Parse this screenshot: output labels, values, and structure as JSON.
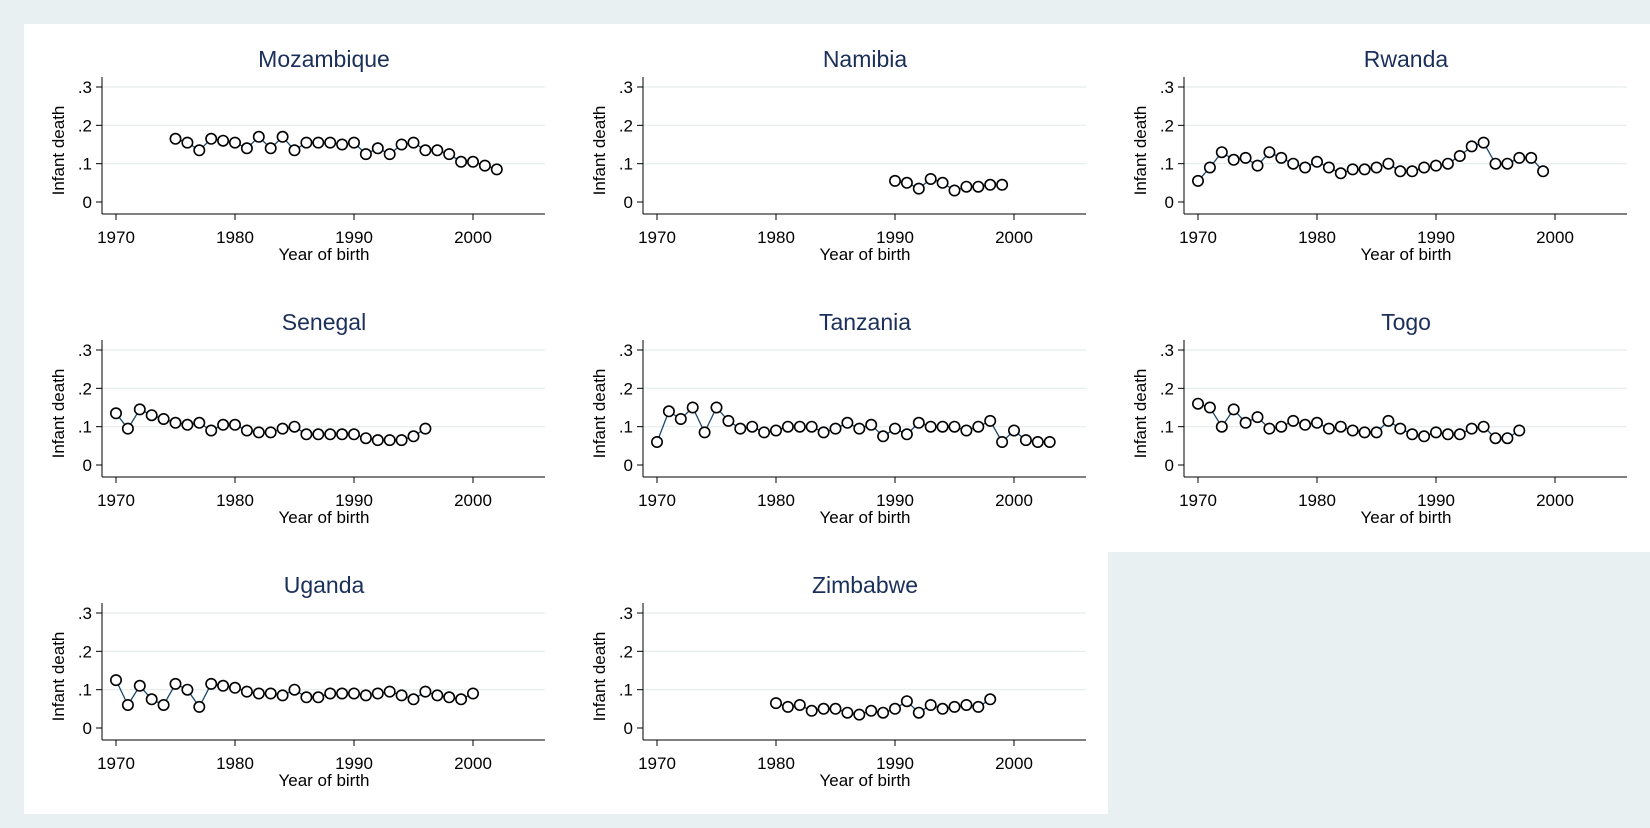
{
  "colors": {
    "outer_background": "#e8f0f2",
    "plot_background": "#ffffff",
    "title": "#1a2f5a",
    "line": "#1a476f",
    "marker_edge": "#000000",
    "marker_fill": "#ffffff",
    "grid": "#e6ecee"
  },
  "chart_data": [
    {
      "type": "line",
      "title": "Mozambique",
      "xlabel": "Year of birth",
      "ylabel": "Infant death",
      "xlim": [
        1970,
        2005
      ],
      "ylim": [
        0,
        0.3
      ],
      "xticks": [
        1970,
        1980,
        1990,
        2000
      ],
      "yticks": [
        0,
        0.1,
        0.2,
        0.3
      ],
      "ytick_labels": [
        "0",
        ".1",
        ".2",
        ".3"
      ],
      "grid": true,
      "marker": "hollow-circle",
      "x": [
        1975,
        1976,
        1977,
        1978,
        1979,
        1980,
        1981,
        1982,
        1983,
        1984,
        1985,
        1986,
        1987,
        1988,
        1989,
        1990,
        1991,
        1992,
        1993,
        1994,
        1995,
        1996,
        1997,
        1998,
        1999,
        2000,
        2001,
        2002
      ],
      "y": [
        0.165,
        0.155,
        0.135,
        0.165,
        0.16,
        0.155,
        0.14,
        0.17,
        0.14,
        0.17,
        0.135,
        0.155,
        0.155,
        0.155,
        0.15,
        0.155,
        0.125,
        0.14,
        0.125,
        0.15,
        0.155,
        0.135,
        0.135,
        0.125,
        0.105,
        0.105,
        0.095,
        0.085
      ]
    },
    {
      "type": "line",
      "title": "Namibia",
      "xlabel": "Year of birth",
      "ylabel": "Infant death",
      "xlim": [
        1970,
        2005
      ],
      "ylim": [
        0,
        0.3
      ],
      "xticks": [
        1970,
        1980,
        1990,
        2000
      ],
      "yticks": [
        0,
        0.1,
        0.2,
        0.3
      ],
      "ytick_labels": [
        "0",
        ".1",
        ".2",
        ".3"
      ],
      "grid": true,
      "marker": "hollow-circle",
      "x": [
        1990,
        1991,
        1992,
        1993,
        1994,
        1995,
        1996,
        1997,
        1998,
        1999
      ],
      "y": [
        0.055,
        0.05,
        0.035,
        0.06,
        0.05,
        0.03,
        0.04,
        0.04,
        0.045,
        0.045
      ]
    },
    {
      "type": "line",
      "title": "Rwanda",
      "xlabel": "Year of birth",
      "ylabel": "Infant death",
      "xlim": [
        1970,
        2005
      ],
      "ylim": [
        0,
        0.3
      ],
      "xticks": [
        1970,
        1980,
        1990,
        2000
      ],
      "yticks": [
        0,
        0.1,
        0.2,
        0.3
      ],
      "ytick_labels": [
        "0",
        ".1",
        ".2",
        ".3"
      ],
      "grid": true,
      "marker": "hollow-circle",
      "x": [
        1970,
        1971,
        1972,
        1973,
        1974,
        1975,
        1976,
        1977,
        1978,
        1979,
        1980,
        1981,
        1982,
        1983,
        1984,
        1985,
        1986,
        1987,
        1988,
        1989,
        1990,
        1991,
        1992,
        1993,
        1994,
        1995,
        1996,
        1997,
        1998,
        1999
      ],
      "y": [
        0.055,
        0.09,
        0.13,
        0.11,
        0.115,
        0.095,
        0.13,
        0.115,
        0.1,
        0.09,
        0.105,
        0.09,
        0.075,
        0.085,
        0.085,
        0.09,
        0.1,
        0.08,
        0.08,
        0.09,
        0.095,
        0.1,
        0.12,
        0.145,
        0.155,
        0.1,
        0.1,
        0.115,
        0.115,
        0.08
      ]
    },
    {
      "type": "line",
      "title": "Senegal",
      "xlabel": "Year of birth",
      "ylabel": "Infant death",
      "xlim": [
        1970,
        2005
      ],
      "ylim": [
        0,
        0.3
      ],
      "xticks": [
        1970,
        1980,
        1990,
        2000
      ],
      "yticks": [
        0,
        0.1,
        0.2,
        0.3
      ],
      "ytick_labels": [
        "0",
        ".1",
        ".2",
        ".3"
      ],
      "grid": true,
      "marker": "hollow-circle",
      "x": [
        1970,
        1971,
        1972,
        1973,
        1974,
        1975,
        1976,
        1977,
        1978,
        1979,
        1980,
        1981,
        1982,
        1983,
        1984,
        1985,
        1986,
        1987,
        1988,
        1989,
        1990,
        1991,
        1992,
        1993,
        1994,
        1995,
        1996
      ],
      "y": [
        0.135,
        0.095,
        0.145,
        0.13,
        0.12,
        0.11,
        0.105,
        0.11,
        0.09,
        0.105,
        0.105,
        0.09,
        0.085,
        0.085,
        0.095,
        0.1,
        0.08,
        0.08,
        0.08,
        0.08,
        0.08,
        0.07,
        0.065,
        0.065,
        0.065,
        0.075,
        0.095
      ]
    },
    {
      "type": "line",
      "title": "Tanzania",
      "xlabel": "Year of birth",
      "ylabel": "Infant death",
      "xlim": [
        1970,
        2005
      ],
      "ylim": [
        0,
        0.3
      ],
      "xticks": [
        1970,
        1980,
        1990,
        2000
      ],
      "yticks": [
        0,
        0.1,
        0.2,
        0.3
      ],
      "ytick_labels": [
        "0",
        ".1",
        ".2",
        ".3"
      ],
      "grid": true,
      "marker": "hollow-circle",
      "x": [
        1970,
        1971,
        1972,
        1973,
        1974,
        1975,
        1976,
        1977,
        1978,
        1979,
        1980,
        1981,
        1982,
        1983,
        1984,
        1985,
        1986,
        1987,
        1988,
        1989,
        1990,
        1991,
        1992,
        1993,
        1994,
        1995,
        1996,
        1997,
        1998,
        1999,
        2000,
        2001,
        2002,
        2003
      ],
      "y": [
        0.06,
        0.14,
        0.12,
        0.15,
        0.085,
        0.15,
        0.115,
        0.095,
        0.1,
        0.085,
        0.09,
        0.1,
        0.1,
        0.1,
        0.085,
        0.095,
        0.11,
        0.095,
        0.105,
        0.075,
        0.095,
        0.08,
        0.11,
        0.1,
        0.1,
        0.1,
        0.09,
        0.1,
        0.115,
        0.06,
        0.09,
        0.065,
        0.06,
        0.06
      ]
    },
    {
      "type": "line",
      "title": "Togo",
      "xlabel": "Year of birth",
      "ylabel": "Infant death",
      "xlim": [
        1970,
        2005
      ],
      "ylim": [
        0,
        0.3
      ],
      "xticks": [
        1970,
        1980,
        1990,
        2000
      ],
      "yticks": [
        0,
        0.1,
        0.2,
        0.3
      ],
      "ytick_labels": [
        "0",
        ".1",
        ".2",
        ".3"
      ],
      "grid": true,
      "marker": "hollow-circle",
      "x": [
        1970,
        1971,
        1972,
        1973,
        1974,
        1975,
        1976,
        1977,
        1978,
        1979,
        1980,
        1981,
        1982,
        1983,
        1984,
        1985,
        1986,
        1987,
        1988,
        1989,
        1990,
        1991,
        1992,
        1993,
        1994,
        1995,
        1996,
        1997
      ],
      "y": [
        0.16,
        0.15,
        0.1,
        0.145,
        0.11,
        0.125,
        0.095,
        0.1,
        0.115,
        0.105,
        0.11,
        0.095,
        0.1,
        0.09,
        0.085,
        0.085,
        0.115,
        0.095,
        0.08,
        0.075,
        0.085,
        0.08,
        0.08,
        0.095,
        0.1,
        0.07,
        0.07,
        0.09
      ]
    },
    {
      "type": "line",
      "title": "Uganda",
      "xlabel": "Year of birth",
      "ylabel": "Infant death",
      "xlim": [
        1970,
        2005
      ],
      "ylim": [
        0,
        0.3
      ],
      "xticks": [
        1970,
        1980,
        1990,
        2000
      ],
      "yticks": [
        0,
        0.1,
        0.2,
        0.3
      ],
      "ytick_labels": [
        "0",
        ".1",
        ".2",
        ".3"
      ],
      "grid": true,
      "marker": "hollow-circle",
      "x": [
        1970,
        1971,
        1972,
        1973,
        1974,
        1975,
        1976,
        1977,
        1978,
        1979,
        1980,
        1981,
        1982,
        1983,
        1984,
        1985,
        1986,
        1987,
        1988,
        1989,
        1990,
        1991,
        1992,
        1993,
        1994,
        1995,
        1996,
        1997,
        1998,
        1999,
        2000
      ],
      "y": [
        0.125,
        0.06,
        0.11,
        0.075,
        0.06,
        0.115,
        0.1,
        0.055,
        0.115,
        0.11,
        0.105,
        0.095,
        0.09,
        0.09,
        0.085,
        0.1,
        0.08,
        0.08,
        0.09,
        0.09,
        0.09,
        0.085,
        0.09,
        0.095,
        0.085,
        0.075,
        0.095,
        0.085,
        0.08,
        0.075,
        0.09
      ]
    },
    {
      "type": "line",
      "title": "Zimbabwe",
      "xlabel": "Year of birth",
      "ylabel": "Infant death",
      "xlim": [
        1970,
        2005
      ],
      "ylim": [
        0,
        0.3
      ],
      "xticks": [
        1970,
        1980,
        1990,
        2000
      ],
      "yticks": [
        0,
        0.1,
        0.2,
        0.3
      ],
      "ytick_labels": [
        "0",
        ".1",
        ".2",
        ".3"
      ],
      "grid": true,
      "marker": "hollow-circle",
      "x": [
        1980,
        1981,
        1982,
        1983,
        1984,
        1985,
        1986,
        1987,
        1988,
        1989,
        1990,
        1991,
        1992,
        1993,
        1994,
        1995,
        1996,
        1997,
        1998
      ],
      "y": [
        0.065,
        0.055,
        0.06,
        0.045,
        0.05,
        0.05,
        0.04,
        0.035,
        0.045,
        0.04,
        0.05,
        0.07,
        0.04,
        0.06,
        0.05,
        0.055,
        0.06,
        0.055,
        0.075
      ]
    }
  ]
}
